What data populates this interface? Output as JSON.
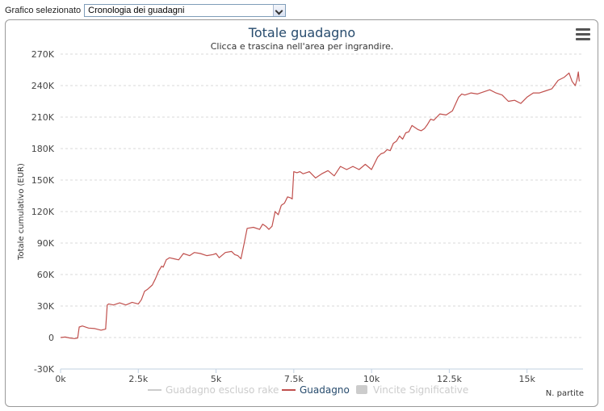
{
  "selector": {
    "label": "Grafico selezionato",
    "value": "Cronologia dei guadagni"
  },
  "chart_data": {
    "type": "line",
    "title": "Totale guadagno",
    "subtitle": "Clicca e trascina nell'area per ingrandire.",
    "xlabel": "N. partite",
    "ylabel": "Totale cumulativo (EUR)",
    "xlim": [
      0,
      16800
    ],
    "ylim": [
      -30000,
      270000
    ],
    "xticks": [
      0,
      2500,
      5000,
      7500,
      10000,
      12500,
      15000
    ],
    "xtick_labels": [
      "0k",
      "2.5k",
      "5k",
      "7.5k",
      "10k",
      "12.5k",
      "15k"
    ],
    "yticks": [
      -30000,
      0,
      30000,
      60000,
      90000,
      120000,
      150000,
      180000,
      210000,
      240000,
      270000
    ],
    "ytick_labels": [
      "-30K",
      "0",
      "30K",
      "60K",
      "90K",
      "120K",
      "150K",
      "180K",
      "210K",
      "240K",
      "270K"
    ],
    "grid": true,
    "legend_position": "bottom",
    "colors": {
      "guadagno": "#c0504d",
      "escluso_rake": "#cccccc",
      "vincite": "#cccccc",
      "title": "#274b6d"
    },
    "series": [
      {
        "name": "Guadagno escluso rake",
        "visible": false,
        "x": [],
        "values": []
      },
      {
        "name": "Guadagno",
        "visible": true,
        "x": [
          0,
          150,
          300,
          450,
          550,
          600,
          700,
          900,
          1100,
          1300,
          1450,
          1500,
          1550,
          1700,
          1900,
          2100,
          2300,
          2500,
          2600,
          2700,
          2800,
          2950,
          3050,
          3150,
          3250,
          3300,
          3400,
          3500,
          3650,
          3800,
          3950,
          4150,
          4300,
          4500,
          4700,
          4900,
          5000,
          5100,
          5300,
          5500,
          5600,
          5700,
          5800,
          5900,
          6000,
          6200,
          6400,
          6500,
          6600,
          6700,
          6800,
          6900,
          7000,
          7100,
          7200,
          7300,
          7400,
          7450,
          7500,
          7600,
          7700,
          7800,
          8000,
          8200,
          8400,
          8600,
          8800,
          9000,
          9200,
          9400,
          9600,
          9800,
          10000,
          10200,
          10300,
          10400,
          10500,
          10600,
          10700,
          10800,
          10900,
          11000,
          11100,
          11200,
          11300,
          11400,
          11500,
          11600,
          11700,
          11800,
          11900,
          12000,
          12200,
          12400,
          12600,
          12800,
          12900,
          13000,
          13200,
          13400,
          13600,
          13800,
          14000,
          14200,
          14400,
          14600,
          14800,
          15000,
          15200,
          15400,
          15600,
          15800,
          16000,
          16200,
          16350,
          16450,
          16550,
          16600,
          16620,
          16650,
          16680
        ],
        "values": [
          0,
          500,
          -500,
          -1000,
          -500,
          10000,
          11000,
          9000,
          8500,
          7000,
          8000,
          31000,
          32000,
          31000,
          33000,
          31000,
          33500,
          32000,
          36000,
          44000,
          46000,
          50000,
          56000,
          63000,
          68000,
          67000,
          74000,
          76000,
          75000,
          74000,
          80000,
          78000,
          81000,
          80000,
          78000,
          79000,
          80000,
          76000,
          81000,
          82000,
          79000,
          78000,
          75000,
          89000,
          104000,
          105000,
          103000,
          108000,
          106000,
          103000,
          106000,
          120000,
          117000,
          126000,
          128000,
          134000,
          133000,
          132000,
          158000,
          157000,
          158000,
          156000,
          158000,
          152000,
          156000,
          159000,
          154000,
          163000,
          160000,
          163000,
          160000,
          165000,
          160000,
          172000,
          175000,
          176000,
          179000,
          178000,
          185000,
          187000,
          192000,
          189000,
          195000,
          196000,
          202000,
          200000,
          198000,
          197000,
          199000,
          203000,
          208000,
          207000,
          213000,
          212000,
          216000,
          229000,
          232000,
          231000,
          233000,
          232000,
          234000,
          236000,
          233000,
          231000,
          225000,
          226000,
          223000,
          229000,
          233000,
          233000,
          235000,
          237000,
          245000,
          248000,
          252000,
          244000,
          240000,
          245000,
          248000,
          253000,
          244000
        ]
      },
      {
        "name": "Vincite Significative",
        "visible": false,
        "x": [],
        "values": []
      }
    ]
  }
}
